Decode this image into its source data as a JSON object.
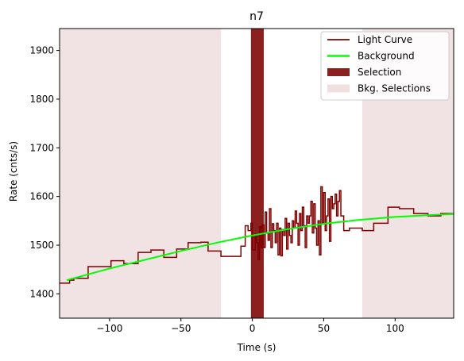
{
  "chart_data": {
    "type": "line",
    "title": "n7",
    "xlabel": "Time (s)",
    "ylabel": "Rate (cnts/s)",
    "xlim": [
      -135,
      141
    ],
    "ylim": [
      1350,
      1945
    ],
    "x_ticks": [
      -100,
      -50,
      0,
      50,
      100
    ],
    "y_ticks": [
      1400,
      1500,
      1600,
      1700,
      1800,
      1900
    ],
    "grid": false,
    "legend_placement": "top-right",
    "legend": [
      {
        "label": "Light Curve",
        "kind": "line",
        "color": "#800000"
      },
      {
        "label": "Background",
        "kind": "line",
        "color": "#00ff00"
      },
      {
        "label": "Selection",
        "kind": "patch",
        "color": "#8b2020"
      },
      {
        "label": "Bkg. Selections",
        "kind": "patch",
        "color": "#f0e0e0"
      }
    ],
    "selection": {
      "start": -1,
      "end": 8
    },
    "bkg_selections": [
      {
        "start": -135,
        "end": -22
      },
      {
        "start": 77,
        "end": 141
      }
    ],
    "background_curve": {
      "x": [
        -130,
        -100,
        -75,
        -50,
        -25,
        0,
        25,
        50,
        75,
        100,
        125,
        141
      ],
      "y": [
        1428,
        1452,
        1470,
        1488,
        1505,
        1520,
        1533,
        1544,
        1552,
        1558,
        1562,
        1564
      ]
    },
    "light_curve": {
      "edges": [
        -135,
        -128,
        -125,
        -115,
        -99,
        -90,
        -80,
        -71,
        -62,
        -53,
        -45,
        -36,
        -31,
        -22,
        -14,
        -8,
        -5,
        -3,
        -1,
        0,
        2,
        3,
        4,
        5,
        6,
        7,
        8,
        9,
        10,
        11,
        12,
        13,
        14,
        15,
        16,
        17,
        18,
        19,
        20,
        21,
        22,
        23,
        24,
        25,
        26,
        27,
        28,
        29,
        30,
        31,
        32,
        33,
        34,
        35,
        36,
        37,
        38,
        39,
        40,
        41,
        42,
        43,
        44,
        45,
        46,
        47,
        48,
        49,
        50,
        51,
        52,
        53,
        54,
        55,
        56,
        57,
        58,
        59,
        60,
        61,
        62,
        64,
        68,
        77,
        85,
        95,
        103,
        113,
        123,
        132,
        141
      ],
      "rate": [
        1422,
        1428,
        1432,
        1456,
        1468,
        1462,
        1485,
        1490,
        1475,
        1492,
        1505,
        1506,
        1488,
        1477,
        1477,
        1498,
        1540,
        1530,
        1545,
        1490,
        1523,
        1505,
        1470,
        1538,
        1495,
        1542,
        1495,
        1568,
        1525,
        1510,
        1575,
        1495,
        1544,
        1530,
        1505,
        1545,
        1480,
        1535,
        1478,
        1532,
        1520,
        1555,
        1492,
        1545,
        1520,
        1505,
        1550,
        1535,
        1570,
        1545,
        1500,
        1565,
        1530,
        1578,
        1540,
        1495,
        1560,
        1545,
        1560,
        1590,
        1525,
        1585,
        1535,
        1500,
        1550,
        1480,
        1620,
        1545,
        1608,
        1530,
        1560,
        1595,
        1508,
        1600,
        1575,
        1585,
        1605,
        1560,
        1590,
        1612,
        1560,
        1530,
        1535,
        1530,
        1545,
        1578,
        1575,
        1565,
        1560,
        1565
      ]
    }
  }
}
